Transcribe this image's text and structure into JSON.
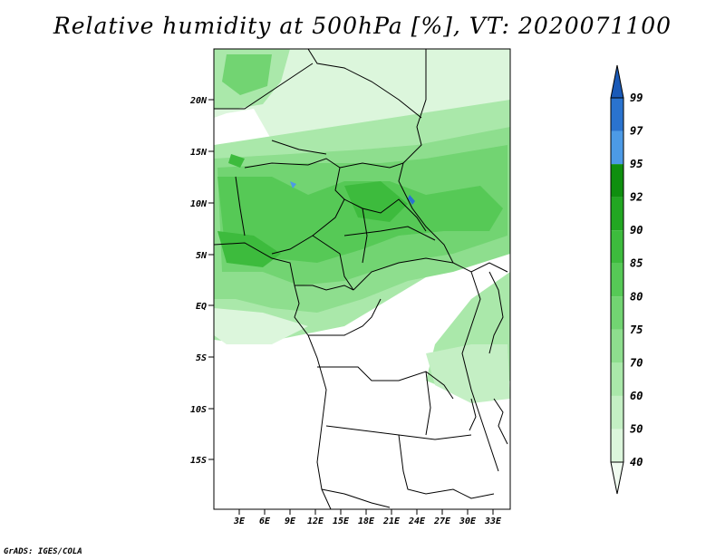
{
  "title": "Relative humidity at 500hPa [%], VT: 2020071100",
  "footer": "GrADS: IGES/COLA",
  "map": {
    "lon_range": [
      0,
      35
    ],
    "lat_range": [
      -20,
      25
    ],
    "lat_ticks": [
      "20N",
      "15N",
      "10N",
      "5N",
      "EQ",
      "5S",
      "10S",
      "15S"
    ],
    "lon_ticks": [
      "3E",
      "6E",
      "9E",
      "12E",
      "15E",
      "18E",
      "21E",
      "24E",
      "27E",
      "30E",
      "33E"
    ]
  },
  "colorbar": {
    "levels": [
      "40",
      "50",
      "60",
      "70",
      "75",
      "80",
      "85",
      "90",
      "92",
      "95",
      "97",
      "99"
    ],
    "colors": [
      "#f0fbf0",
      "#dcf6dc",
      "#c4efc4",
      "#aae8aa",
      "#8ede8e",
      "#72d472",
      "#56c956",
      "#3dbb3d",
      "#22a722",
      "#0f8f0f",
      "#4c9ae6",
      "#2a73cf",
      "#1a5ab8"
    ]
  }
}
